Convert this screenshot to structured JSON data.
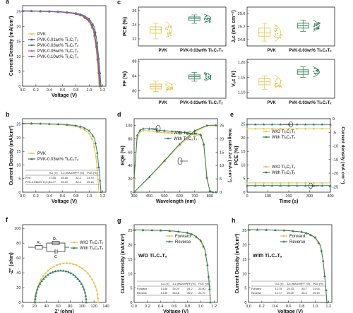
{
  "panels": {
    "a": {
      "letter": "a",
      "xlabel": "Voltage (V)",
      "ylabel": "Current Density (mA/cm²)",
      "xticks": [
        "0.0",
        "0.2",
        "0.4",
        "0.6",
        "0.8",
        "1.0",
        "1.2"
      ],
      "yticks": [
        "0",
        "5",
        "10",
        "15",
        "20",
        "25"
      ],
      "legend": [
        "PVK",
        "PVK-0.01wt% Ti₃C₂Tₓ",
        "PVK-0.03wt% Ti₃C₂Tₓ",
        "PVK-0.05wt% Ti₃C₂Tₓ",
        "PVK-0.10wt% Ti₃C₂Tₓ"
      ],
      "colors": [
        "#e8c24a",
        "#3a4aa0",
        "#2e7d5a",
        "#c0507a",
        "#7a5fb0"
      ]
    },
    "b": {
      "letter": "b",
      "xlabel": "Voltage (V)",
      "ylabel": "Current Density (mA/cm²)",
      "xticks": [
        "0.0",
        "0.2",
        "0.4",
        "0.6",
        "0.8",
        "1.0",
        "1.2"
      ],
      "yticks": [
        "0",
        "5",
        "10",
        "15",
        "20",
        "25"
      ],
      "legend": [
        "PVK",
        "PVK-0.03wt% Ti₃C₂Tₓ"
      ],
      "colors": [
        "#e8c24a",
        "#2e7d5a"
      ],
      "table": {
        "header": [
          "",
          "Vₒc (V)",
          "Jₛc (mA/cm²)",
          "FF (%)",
          "PCE (%)"
        ],
        "rows": [
          [
            "PVK",
            "1.145",
            "25.18",
            "82.2",
            "23.70"
          ],
          [
            "PVK-0.03wt% Ti₃C₂Tₓ",
            "1.177",
            "25.29",
            "84.4",
            "25.13"
          ]
        ]
      }
    },
    "c": {
      "letter": "c",
      "subplots": [
        {
          "ylabel": "PCE (%)",
          "yticks": [
            "22",
            "24",
            "26"
          ],
          "categories": [
            "PVK",
            "PVK-0.03wt% Ti₃C₂Tₓ"
          ]
        },
        {
          "ylabel": "Jₛc (mA cm⁻²)",
          "yticks": [
            "24.8",
            "25.2",
            "25.6"
          ],
          "categories": [
            "PVK",
            "PVK-0.03wt% Ti₃C₂Tₓ"
          ]
        },
        {
          "ylabel": "FF (%)",
          "yticks": [
            "80",
            "84",
            "88"
          ],
          "categories": [
            "PVK",
            "PVK-0.03wt% Ti₃C₂Tₓ"
          ]
        },
        {
          "ylabel": "Vₒc (V)",
          "yticks": [
            "1.10",
            "1.15",
            "1.20"
          ],
          "categories": [
            "PVK",
            "PVK-0.03wt% Ti₃C₂Tₓ"
          ]
        }
      ]
    },
    "d": {
      "letter": "d",
      "xlabel": "Wavelength (nm)",
      "ylabel": "EQE (%)",
      "ylabel2": "Integrated Jₛc (mA cm⁻²)",
      "xticks": [
        "300",
        "400",
        "500",
        "600",
        "700",
        "800"
      ],
      "yticks": [
        "0",
        "20",
        "40",
        "60",
        "80",
        "100"
      ],
      "yticks2": [
        "0",
        "5",
        "10",
        "15",
        "20",
        "25"
      ],
      "legend": [
        "W/O Ti₃C₂Tₓ",
        "With Ti₃C₂Tₓ"
      ],
      "colors": [
        "#e8c24a",
        "#2e7d5a"
      ]
    },
    "e": {
      "letter": "e",
      "xlabel": "Time (s)",
      "ylabel": "PCE (%)",
      "ylabel2": "Current density (mA cm⁻²)",
      "xticks": [
        "0",
        "100",
        "200",
        "300",
        "400"
      ],
      "yticks": [
        "0",
        "5",
        "10",
        "15",
        "20",
        "25"
      ],
      "yticks2": [
        "-25",
        "-20",
        "-15",
        "-10",
        "-5",
        "0"
      ],
      "legend": [
        "W/O Ti₃C₂Tₓ",
        "With Ti₃C₂Tₓ"
      ],
      "legend2": [
        "W/O Ti₃C₂Tₓ",
        "With Ti₃C₂Tₓ"
      ],
      "colors": [
        "#e8c24a",
        "#2e7d5a"
      ]
    },
    "f": {
      "letter": "f",
      "xlabel": "Z' (ohm)",
      "ylabel": "-Z'' (ohm)",
      "xticks": [
        "0",
        "20",
        "40",
        "60",
        "80",
        "100",
        "120",
        "140"
      ],
      "yticks": [
        "0",
        "20",
        "40",
        "60",
        "80",
        "100"
      ],
      "legend": [
        "W/O Ti₃C₂Tₓ",
        "With Ti₃C₂Tₓ"
      ],
      "colors": [
        "#e8c24a",
        "#2e7d5a"
      ],
      "circuit": [
        "Rₛ",
        "Rᵣ",
        "C"
      ]
    },
    "g": {
      "letter": "g",
      "title": "W/O Ti₃C₂Tₓ",
      "xlabel": "Voltage (V)",
      "ylabel": "Current Density (mA/cm²)",
      "xticks": [
        "0.0",
        "0.2",
        "0.4",
        "0.6",
        "0.8",
        "1.0",
        "1.2"
      ],
      "yticks": [
        "0",
        "5",
        "10",
        "15",
        "20",
        "25"
      ],
      "legend": [
        "Forward",
        "Reverse"
      ],
      "colors": [
        "#e8c24a",
        "#2e7d5a"
      ],
      "table": {
        "header": [
          "",
          "Vₒc (V)",
          "Jₛc (mA/cm²)",
          "FF (%)",
          "PCE (%)"
        ],
        "rows": [
          [
            "Forward",
            "1.146",
            "25.24",
            "81.2",
            "23.50"
          ],
          [
            "Reverse",
            "1.145",
            "25.18",
            "82.2",
            "23.70"
          ]
        ]
      }
    },
    "h": {
      "letter": "h",
      "title": "With Ti₃C₂Tₓ",
      "xlabel": "Voltage (V)",
      "ylabel": "Current Density (mA/cm²)",
      "xticks": [
        "0.0",
        "0.2",
        "0.4",
        "0.6",
        "0.8",
        "1.0",
        "1.2"
      ],
      "yticks": [
        "0",
        "5",
        "10",
        "15",
        "20",
        "25"
      ],
      "legend": [
        "Forward",
        "Reverse"
      ],
      "colors": [
        "#e8c24a",
        "#2e7d5a"
      ],
      "table": {
        "header": [
          "",
          "Vₒc (V)",
          "Jₛc (mA/cm²)",
          "FF (%)",
          "PCE (%)"
        ],
        "rows": [
          [
            "Forward",
            "1.175",
            "25.33",
            "83.7",
            "24.93"
          ],
          [
            "Reverse",
            "1.177",
            "25.29",
            "84.4",
            "25.13"
          ]
        ]
      }
    }
  },
  "chart_data": [
    {
      "panel": "a",
      "type": "line",
      "xlim": [
        0,
        1.25
      ],
      "ylim": [
        0,
        27
      ],
      "series": [
        {
          "name": "PVK",
          "x": [
            0,
            0.2,
            0.4,
            0.6,
            0.8,
            0.9,
            1.0,
            1.06,
            1.1,
            1.125,
            1.145
          ],
          "y": [
            25.18,
            25.1,
            25.0,
            24.8,
            24.2,
            23.4,
            21.5,
            18.5,
            13.0,
            7.0,
            0
          ]
        },
        {
          "name": "PVK-0.01wt% Ti₃C₂Tₓ",
          "x": [
            0,
            0.2,
            0.4,
            0.6,
            0.8,
            0.9,
            1.0,
            1.07,
            1.11,
            1.14,
            1.16
          ],
          "y": [
            25.22,
            25.15,
            25.05,
            24.85,
            24.3,
            23.6,
            22.0,
            19.0,
            13.5,
            6.5,
            0
          ]
        },
        {
          "name": "PVK-0.03wt% Ti₃C₂Tₓ",
          "x": [
            0,
            0.2,
            0.4,
            0.6,
            0.8,
            0.9,
            1.0,
            1.08,
            1.12,
            1.155,
            1.177
          ],
          "y": [
            25.29,
            25.22,
            25.12,
            24.95,
            24.5,
            23.9,
            22.6,
            19.8,
            14.5,
            6.5,
            0
          ]
        },
        {
          "name": "PVK-0.05wt% Ti₃C₂Tₓ",
          "x": [
            0,
            0.2,
            0.4,
            0.6,
            0.8,
            0.9,
            1.0,
            1.07,
            1.11,
            1.145,
            1.165
          ],
          "y": [
            25.25,
            25.18,
            25.08,
            24.9,
            24.4,
            23.7,
            22.2,
            19.2,
            13.8,
            6.5,
            0
          ]
        },
        {
          "name": "PVK-0.10wt% Ti₃C₂Tₓ",
          "x": [
            0,
            0.2,
            0.4,
            0.6,
            0.8,
            0.9,
            1.0,
            1.065,
            1.105,
            1.135,
            1.155
          ],
          "y": [
            25.2,
            25.12,
            25.02,
            24.82,
            24.25,
            23.5,
            21.8,
            18.8,
            13.2,
            6.5,
            0
          ]
        }
      ]
    },
    {
      "panel": "b",
      "type": "line",
      "xlim": [
        0,
        1.25
      ],
      "ylim": [
        0,
        27
      ],
      "series": [
        {
          "name": "PVK",
          "x": [
            0,
            0.2,
            0.4,
            0.6,
            0.8,
            0.9,
            1.0,
            1.06,
            1.1,
            1.125,
            1.145
          ],
          "y": [
            25.18,
            25.1,
            25.0,
            24.8,
            24.2,
            23.4,
            21.5,
            18.5,
            13.0,
            7.0,
            0
          ]
        },
        {
          "name": "PVK-0.03wt% Ti₃C₂Tₓ",
          "x": [
            0,
            0.2,
            0.4,
            0.6,
            0.8,
            0.9,
            1.0,
            1.08,
            1.12,
            1.155,
            1.177
          ],
          "y": [
            25.29,
            25.22,
            25.12,
            24.95,
            24.5,
            23.9,
            22.6,
            19.8,
            14.5,
            6.5,
            0
          ]
        }
      ]
    },
    {
      "panel": "c",
      "type": "box",
      "subplots": [
        {
          "metric": "PCE (%)",
          "ylim": [
            21,
            26.5
          ],
          "groups": [
            {
              "name": "PVK",
              "q1": 22.8,
              "median": 23.3,
              "q3": 23.7,
              "min": 22.0,
              "max": 24.2
            },
            {
              "name": "PVK-0.03wt% Ti₃C₂Tₓ",
              "q1": 24.6,
              "median": 24.9,
              "q3": 25.1,
              "min": 24.2,
              "max": 25.4
            }
          ]
        },
        {
          "metric": "Jₛc (mA cm⁻²)",
          "ylim": [
            24.6,
            25.8
          ],
          "groups": [
            {
              "name": "PVK",
              "q1": 24.9,
              "median": 25.0,
              "q3": 25.15,
              "min": 24.75,
              "max": 25.3
            },
            {
              "name": "PVK-0.03wt% Ti₃C₂Tₓ",
              "q1": 25.15,
              "median": 25.22,
              "q3": 25.3,
              "min": 25.05,
              "max": 25.4
            }
          ]
        },
        {
          "metric": "FF (%)",
          "ylim": [
            78,
            88.5
          ],
          "groups": [
            {
              "name": "PVK",
              "q1": 80.5,
              "median": 81.2,
              "q3": 81.8,
              "min": 79.8,
              "max": 82.6
            },
            {
              "name": "PVK-0.03wt% Ti₃C₂Tₓ",
              "q1": 83.2,
              "median": 83.8,
              "q3": 84.3,
              "min": 82.6,
              "max": 85.0
            }
          ]
        },
        {
          "metric": "Vₒc (V)",
          "ylim": [
            1.08,
            1.21
          ],
          "groups": [
            {
              "name": "PVK",
              "q1": 1.125,
              "median": 1.135,
              "q3": 1.145,
              "min": 1.11,
              "max": 1.155
            },
            {
              "name": "PVK-0.03wt% Ti₃C₂Tₓ",
              "q1": 1.16,
              "median": 1.168,
              "q3": 1.175,
              "min": 1.15,
              "max": 1.185
            }
          ]
        }
      ]
    },
    {
      "panel": "d",
      "type": "line",
      "xlim": [
        300,
        850
      ],
      "ylim": [
        0,
        110
      ],
      "y2lim": [
        0,
        27.5
      ],
      "series": [
        {
          "name": "W/O Ti₃C₂Tₓ EQE",
          "x": [
            300,
            320,
            340,
            360,
            400,
            450,
            500,
            550,
            600,
            650,
            700,
            740,
            760,
            780,
            800,
            820,
            840
          ],
          "y": [
            20,
            80,
            90,
            92,
            92,
            90,
            89,
            88,
            87,
            87,
            86,
            84,
            70,
            20,
            2,
            0,
            0
          ]
        },
        {
          "name": "With Ti₃C₂Tₓ EQE",
          "x": [
            300,
            320,
            340,
            360,
            400,
            450,
            500,
            550,
            600,
            650,
            700,
            740,
            760,
            780,
            800,
            820,
            840
          ],
          "y": [
            22,
            85,
            93,
            95,
            95,
            93,
            92,
            91,
            90,
            89,
            88,
            86,
            72,
            22,
            2,
            0,
            0
          ]
        },
        {
          "name": "W/O Ti₃C₂Tₓ integrated",
          "x": [
            300,
            400,
            500,
            600,
            700,
            780,
            840
          ],
          "y2": [
            0,
            5.5,
            11.5,
            17.5,
            22.5,
            24.8,
            24.9
          ]
        },
        {
          "name": "With Ti₃C₂Tₓ integrated",
          "x": [
            300,
            400,
            500,
            600,
            700,
            780,
            840
          ],
          "y2": [
            0,
            5.7,
            11.8,
            18.0,
            23.0,
            25.0,
            25.1
          ]
        }
      ]
    },
    {
      "panel": "e",
      "type": "line",
      "xlim": [
        0,
        400
      ],
      "ylim": [
        0,
        27
      ],
      "series": [
        {
          "name": "W/O Ti₃C₂Tₓ PCE",
          "x": [
            0,
            400
          ],
          "y": [
            23.3,
            23.3
          ]
        },
        {
          "name": "With Ti₃C₂Tₓ PCE",
          "x": [
            0,
            400
          ],
          "y": [
            24.9,
            24.9
          ]
        },
        {
          "name": "W/O Ti₃C₂Tₓ current",
          "x": [
            0,
            400
          ],
          "y2": [
            -23.6,
            -23.6
          ]
        },
        {
          "name": "With Ti₃C₂Tₓ current",
          "x": [
            0,
            400
          ],
          "y2": [
            -24.6,
            -24.6
          ]
        }
      ]
    },
    {
      "panel": "f",
      "type": "scatter",
      "xlim": [
        0,
        140
      ],
      "ylim": [
        0,
        105
      ],
      "series": [
        {
          "name": "W/O Ti₃C₂Tₓ",
          "center": [
            74,
            0
          ],
          "radius": 53
        },
        {
          "name": "With Ti₃C₂Tₓ",
          "center": [
            64,
            0
          ],
          "radius": 43
        }
      ]
    },
    {
      "panel": "g",
      "type": "line",
      "xlim": [
        0,
        1.25
      ],
      "ylim": [
        0,
        27
      ],
      "series": [
        {
          "name": "Forward",
          "x": [
            0,
            0.2,
            0.4,
            0.6,
            0.8,
            0.9,
            1.0,
            1.06,
            1.1,
            1.125,
            1.146
          ],
          "y": [
            25.24,
            25.15,
            25.0,
            24.75,
            24.1,
            23.2,
            21.2,
            18.2,
            12.8,
            6.8,
            0
          ]
        },
        {
          "name": "Reverse",
          "x": [
            0,
            0.2,
            0.4,
            0.6,
            0.8,
            0.9,
            1.0,
            1.06,
            1.1,
            1.125,
            1.145
          ],
          "y": [
            25.18,
            25.1,
            25.0,
            24.8,
            24.2,
            23.4,
            21.5,
            18.5,
            13.0,
            7.0,
            0
          ]
        }
      ]
    },
    {
      "panel": "h",
      "type": "line",
      "xlim": [
        0,
        1.25
      ],
      "ylim": [
        0,
        27
      ],
      "series": [
        {
          "name": "Forward",
          "x": [
            0,
            0.2,
            0.4,
            0.6,
            0.8,
            0.9,
            1.0,
            1.08,
            1.12,
            1.155,
            1.175
          ],
          "y": [
            25.33,
            25.25,
            25.13,
            24.92,
            24.4,
            23.7,
            22.3,
            19.5,
            14.2,
            6.4,
            0
          ]
        },
        {
          "name": "Reverse",
          "x": [
            0,
            0.2,
            0.4,
            0.6,
            0.8,
            0.9,
            1.0,
            1.08,
            1.12,
            1.155,
            1.177
          ],
          "y": [
            25.29,
            25.22,
            25.12,
            24.95,
            24.5,
            23.9,
            22.6,
            19.8,
            14.5,
            6.5,
            0
          ]
        }
      ]
    }
  ]
}
